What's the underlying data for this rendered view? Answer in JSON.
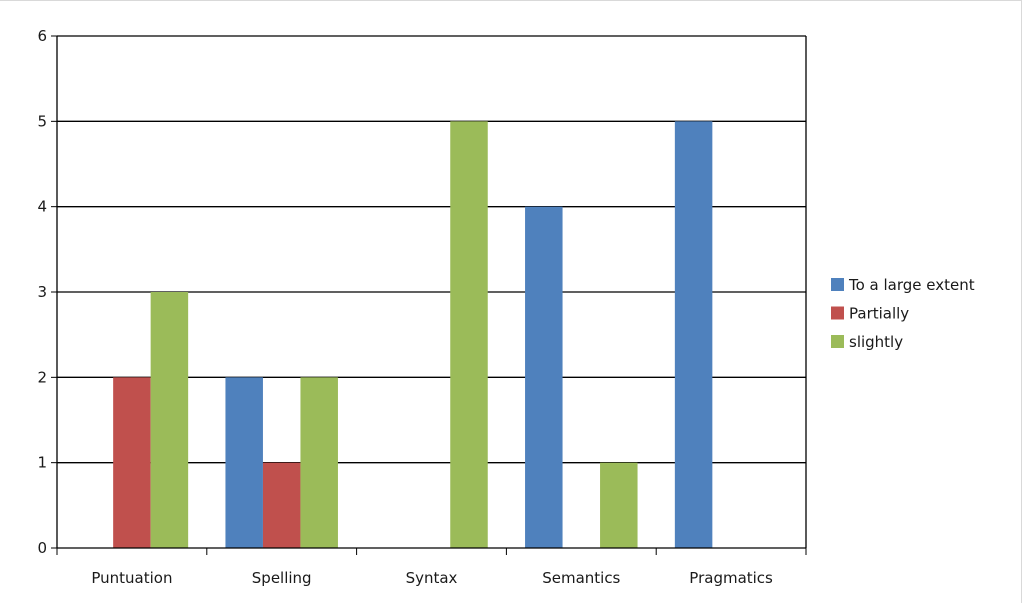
{
  "chart_data": {
    "type": "bar",
    "categories": [
      "Puntuation",
      "Spelling",
      "Syntax",
      "Semantics",
      "Pragmatics"
    ],
    "series": [
      {
        "name": "To a large extent",
        "values": [
          0,
          2,
          0,
          4,
          5
        ],
        "color": "#4f81bd"
      },
      {
        "name": "Partially",
        "values": [
          2,
          1,
          0,
          0,
          0
        ],
        "color": "#c0504d"
      },
      {
        "name": "slightly",
        "values": [
          3,
          2,
          5,
          1,
          0
        ],
        "color": "#9bbb59"
      }
    ],
    "ylim": [
      0,
      6
    ],
    "yticks": [
      0,
      1,
      2,
      3,
      4,
      5,
      6
    ],
    "grid": true,
    "legend": "right"
  }
}
